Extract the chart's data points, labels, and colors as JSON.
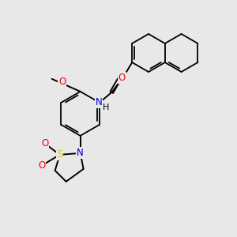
{
  "background_color": "#e8e8e8",
  "bond_color": "#000000",
  "atom_colors": {
    "O": "#ff0000",
    "N": "#0000cd",
    "S": "#cccc00",
    "H": "#000000",
    "C": "#000000"
  },
  "figsize": [
    3.0,
    3.0
  ],
  "dpi": 100,
  "xlim": [
    0,
    300
  ],
  "ylim": [
    0,
    300
  ]
}
